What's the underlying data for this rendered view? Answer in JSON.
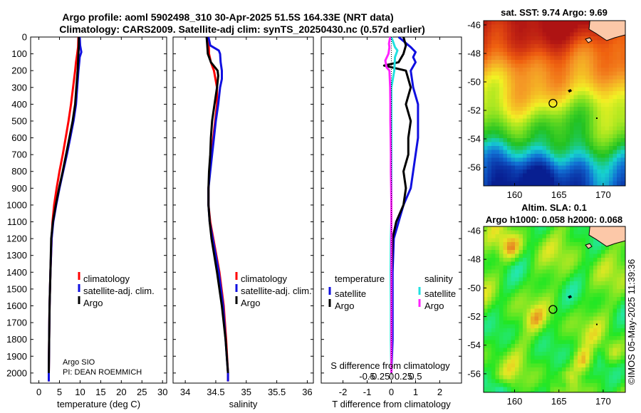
{
  "header": {
    "line1": "Argo profile: aoml 5902498_310 30-Apr-2025 51.5S 164.33E (NRT data)",
    "line2": "Climatology: CARS2009. Satellite-adj clim: synTS_20250430.nc (0.57d earlier)"
  },
  "depth_ticks": [
    "0",
    "100",
    "200",
    "300",
    "400",
    "500",
    "600",
    "700",
    "800",
    "900",
    "1000",
    "1100",
    "1200",
    "1300",
    "1400",
    "1500",
    "1600",
    "1700",
    "1800",
    "1900",
    "2000"
  ],
  "colors": {
    "red": "#ff0000",
    "blue": "#1010e0",
    "black": "#000000",
    "cyan": "#22e0e0",
    "magenta": "#ff22ff"
  },
  "chart_data": [
    {
      "type": "line",
      "id": "temp",
      "xlabel": "temperature (deg C)",
      "xlim": [
        -2,
        31
      ],
      "ylim": [
        2060,
        0
      ],
      "xticks": [
        0,
        5,
        10,
        15,
        20,
        25,
        30
      ],
      "xtick_labels": [
        "0",
        "5",
        "10",
        "15",
        "20",
        "25",
        "30"
      ],
      "legend": [
        "climatology",
        "satellite-adj. clim.",
        "Argo"
      ],
      "note_lines": [
        "Argo SIO",
        "PI: DEAN ROEMMICH"
      ],
      "series": [
        {
          "name": "climatology",
          "color": "red",
          "depth": [
            0,
            60,
            100,
            150,
            200,
            300,
            400,
            500,
            600,
            700,
            800,
            900,
            1000,
            1100,
            1200,
            1400,
            1600,
            1800,
            2000,
            2050
          ],
          "values": [
            9.6,
            9.5,
            9.3,
            9.0,
            8.8,
            8.3,
            7.8,
            7.2,
            6.5,
            5.8,
            5.0,
            4.3,
            3.7,
            3.3,
            3.1,
            2.8,
            2.6,
            2.5,
            2.4,
            2.4
          ]
        },
        {
          "name": "satellite-adj. clim.",
          "color": "blue",
          "depth": [
            0,
            50,
            90,
            120,
            150,
            200,
            300,
            400,
            500,
            600,
            700,
            800,
            900,
            1000,
            1100,
            1200,
            1400,
            1600,
            1800,
            2000,
            2050
          ],
          "values": [
            9.9,
            10.0,
            10.3,
            9.9,
            9.8,
            9.6,
            9.3,
            9.0,
            8.4,
            7.6,
            6.8,
            5.9,
            5.0,
            4.2,
            3.5,
            3.1,
            2.8,
            2.6,
            2.5,
            2.4,
            2.4
          ]
        },
        {
          "name": "Argo",
          "color": "black",
          "depth": [
            0,
            50,
            100,
            150,
            200,
            300,
            400,
            500,
            600,
            700,
            800,
            900,
            1000,
            1100,
            1200,
            1400,
            1600,
            1800,
            2000
          ],
          "values": [
            9.7,
            9.7,
            9.6,
            9.5,
            9.4,
            9.1,
            8.8,
            8.2,
            7.4,
            6.6,
            5.8,
            4.9,
            4.1,
            3.4,
            3.0,
            2.8,
            2.6,
            2.5,
            2.4
          ]
        }
      ]
    },
    {
      "type": "line",
      "id": "sal",
      "xlabel": "salinity",
      "xlim": [
        33.8,
        36.1
      ],
      "ylim": [
        2060,
        0
      ],
      "xticks": [
        34,
        34.5,
        35,
        35.5,
        36
      ],
      "xtick_labels": [
        "34",
        "34.5",
        "35",
        "35.5",
        "36"
      ],
      "legend": [
        "climatology",
        "satellite-adj. clim.",
        "Argo"
      ],
      "series": [
        {
          "name": "climatology",
          "color": "red",
          "depth": [
            0,
            100,
            150,
            200,
            300,
            400,
            500,
            600,
            700,
            800,
            900,
            1000,
            1100,
            1200,
            1400,
            1600,
            1800,
            2000,
            2050
          ],
          "values": [
            34.38,
            34.39,
            34.42,
            34.47,
            34.52,
            34.52,
            34.49,
            34.46,
            34.43,
            34.4,
            34.38,
            34.38,
            34.41,
            34.46,
            34.56,
            34.63,
            34.67,
            34.7,
            34.7
          ]
        },
        {
          "name": "satellite-adj. clim.",
          "color": "blue",
          "depth": [
            0,
            50,
            80,
            100,
            150,
            200,
            250,
            300,
            400,
            500,
            600,
            700,
            800,
            900,
            1000,
            1100,
            1200,
            1400,
            1600,
            1800,
            2000,
            2050
          ],
          "values": [
            34.38,
            34.41,
            34.55,
            34.57,
            34.58,
            34.6,
            34.6,
            34.57,
            34.54,
            34.5,
            34.47,
            34.44,
            34.41,
            34.38,
            34.38,
            34.4,
            34.45,
            34.55,
            34.62,
            34.66,
            34.7,
            34.7
          ]
        },
        {
          "name": "Argo",
          "color": "black",
          "depth": [
            0,
            50,
            100,
            150,
            200,
            230,
            300,
            400,
            500,
            600,
            700,
            800,
            900,
            1000,
            1100,
            1200,
            1400,
            1600,
            1800,
            2000
          ],
          "values": [
            34.35,
            34.36,
            34.37,
            34.42,
            34.53,
            34.54,
            34.52,
            34.48,
            34.44,
            34.42,
            34.41,
            34.39,
            34.38,
            34.38,
            34.4,
            34.43,
            34.52,
            34.6,
            34.66,
            34.7
          ]
        }
      ]
    },
    {
      "type": "line",
      "id": "diff",
      "xlabel": "T difference from climatology",
      "xlabel2": "S difference from climatology",
      "xlim": [
        -2.9,
        2.9
      ],
      "ylim": [
        2060,
        0
      ],
      "xticks": [
        -2,
        -1,
        0,
        1,
        2
      ],
      "xtick_labels": [
        "-2",
        "-1",
        "0",
        "1",
        "2"
      ],
      "sticks": [
        -0.5,
        -0.25,
        0,
        0.25,
        0.5
      ],
      "stick_labels": [
        "-0.5",
        "-0.25",
        "0",
        "0.25",
        "0.5"
      ],
      "legend_group_labels": [
        "temperature",
        "salinity"
      ],
      "legend": [
        "satellite",
        "Argo",
        "satellite",
        "Argo"
      ],
      "series": [
        {
          "name": "T satellite",
          "color": "blue",
          "depth": [
            0,
            60,
            90,
            120,
            150,
            200,
            300,
            400,
            500,
            600,
            700,
            800,
            900,
            1000,
            1100,
            1200,
            1400,
            1600,
            1800,
            2000
          ],
          "values": [
            0.3,
            0.8,
            1.0,
            0.9,
            1.0,
            0.8,
            0.9,
            1.1,
            1.1,
            1.1,
            1.0,
            0.9,
            0.8,
            0.5,
            0.3,
            0.1,
            0.05,
            0.05,
            0.05,
            0.0
          ]
        },
        {
          "name": "T Argo",
          "color": "black",
          "depth": [
            0,
            50,
            100,
            150,
            170,
            200,
            300,
            400,
            500,
            600,
            700,
            800,
            900,
            1000,
            1100,
            1200,
            1400,
            1600,
            1800,
            2000
          ],
          "values": [
            0.5,
            0.6,
            0.5,
            0.3,
            -0.3,
            0.6,
            0.8,
            0.6,
            0.8,
            0.7,
            0.7,
            0.5,
            0.6,
            0.5,
            0.2,
            0.05,
            0.0,
            0.0,
            0.0,
            0.0
          ]
        },
        {
          "name": "S satellite",
          "color": "cyan",
          "depth": [
            0,
            60,
            80,
            120,
            200,
            300,
            400,
            500,
            600,
            700,
            800,
            900,
            1000,
            1100,
            1200,
            1400,
            1600,
            1800,
            2000
          ],
          "values": [
            0.0,
            0.15,
            0.25,
            0.15,
            0.12,
            0.0,
            0.0,
            0.0,
            0.0,
            0.0,
            0.0,
            0.0,
            0.0,
            0.0,
            -0.02,
            -0.03,
            -0.02,
            -0.02,
            0.0
          ]
        },
        {
          "name": "S Argo",
          "color": "magenta",
          "depth": [
            0,
            40,
            60,
            100,
            140,
            180,
            200,
            300,
            400,
            500,
            600,
            700,
            800,
            900,
            1000,
            1100,
            1200,
            1400,
            1600,
            1800,
            2000
          ],
          "values": [
            -0.05,
            -0.1,
            -0.08,
            -0.12,
            -0.25,
            -0.2,
            -0.08,
            -0.05,
            -0.04,
            -0.04,
            -0.03,
            -0.02,
            -0.02,
            -0.01,
            0.0,
            0.0,
            0.0,
            0.0,
            0.0,
            0.0,
            0.0
          ]
        }
      ]
    },
    {
      "type": "heatmap",
      "id": "sst",
      "title": "sat. SST: 9.74 Argo: 9.69",
      "xlim": [
        156.5,
        172.5
      ],
      "ylim": [
        -57.3,
        -45.7
      ],
      "xticks": [
        160,
        165,
        170
      ],
      "yticks": [
        -46,
        -48,
        -50,
        -52,
        -54,
        -56
      ],
      "xtick_labels": [
        "160",
        "165",
        "170"
      ],
      "ytick_labels": [
        "-46",
        "-48",
        "-50",
        "-52",
        "-54",
        "-56"
      ],
      "profile": {
        "lon": 164.33,
        "lat": -51.5
      }
    },
    {
      "type": "heatmap",
      "id": "sla",
      "title": "Altim. SLA: 0.1",
      "subtitle": "Argo h1000: 0.058 h2000: 0.068",
      "xlim": [
        156.5,
        172.5
      ],
      "ylim": [
        -57.3,
        -45.7
      ],
      "xticks": [
        160,
        165,
        170
      ],
      "yticks": [
        -46,
        -48,
        -50,
        -52,
        -54,
        -56
      ],
      "xtick_labels": [
        "160",
        "165",
        "170"
      ],
      "ytick_labels": [
        "-46",
        "-48",
        "-50",
        "-52",
        "-54",
        "-56"
      ],
      "profile": {
        "lon": 164.33,
        "lat": -51.5
      }
    }
  ],
  "copyright": "©IMOS 05-May-2025 11:39:36"
}
